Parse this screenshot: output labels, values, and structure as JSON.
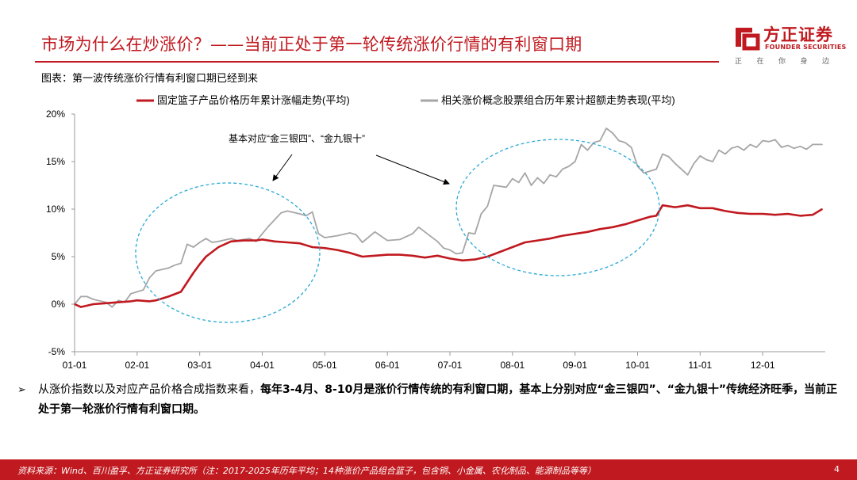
{
  "header": {
    "title": "市场为什么在炒涨价？——当前正处于第一轮传统涨价行情的有利窗口期",
    "subtitle": "图表：第一波传统涨价行情有利窗口期已经到来"
  },
  "logo": {
    "name": "方正证券",
    "english": "FOUNDER SECURITIES",
    "slogan": "正在你身边"
  },
  "colors": {
    "brand": "#c0191f",
    "series_red": "#c0191f",
    "series_gray": "#a6a6a6",
    "circle": "#2aa9d6"
  },
  "chart_data": {
    "type": "line",
    "title": "",
    "xlabel": "",
    "ylabel": "",
    "ylim": [
      -5,
      20
    ],
    "yticks": [
      "20%",
      "15%",
      "10%",
      "5%",
      "0%",
      "-5%"
    ],
    "xlim": [
      1,
      13
    ],
    "xticks": [
      "01-01",
      "02-01",
      "03-01",
      "04-01",
      "05-01",
      "06-01",
      "07-01",
      "08-01",
      "09-01",
      "10-01",
      "11-01",
      "12-01"
    ],
    "grid": false,
    "legend_position": "top",
    "series": [
      {
        "name": "固定篮子产品价格历年累计涨幅走势(平均)",
        "color": "#c0191f",
        "x": [
          1.0,
          1.1,
          1.3,
          1.5,
          1.7,
          1.9,
          2.0,
          2.2,
          2.3,
          2.5,
          2.7,
          2.8,
          2.9,
          3.0,
          3.1,
          3.3,
          3.5,
          3.7,
          3.9,
          4.0,
          4.2,
          4.4,
          4.6,
          4.8,
          5.0,
          5.2,
          5.4,
          5.6,
          5.8,
          6.0,
          6.2,
          6.4,
          6.6,
          6.8,
          7.0,
          7.2,
          7.4,
          7.6,
          7.8,
          8.0,
          8.2,
          8.4,
          8.6,
          8.8,
          9.0,
          9.2,
          9.4,
          9.6,
          9.8,
          10.0,
          10.2,
          10.3,
          10.4,
          10.6,
          10.8,
          11.0,
          11.2,
          11.4,
          11.6,
          11.8,
          12.0,
          12.2,
          12.4,
          12.6,
          12.8,
          12.95
        ],
        "values": [
          0.0,
          -0.3,
          0.0,
          0.1,
          0.2,
          0.3,
          0.4,
          0.3,
          0.4,
          0.8,
          1.3,
          2.3,
          3.3,
          4.2,
          5.0,
          6.0,
          6.6,
          6.7,
          6.7,
          6.8,
          6.6,
          6.5,
          6.4,
          6.0,
          5.9,
          5.7,
          5.4,
          5.0,
          5.1,
          5.2,
          5.2,
          5.1,
          4.9,
          5.1,
          4.8,
          4.6,
          4.7,
          5.0,
          5.5,
          6.0,
          6.5,
          6.7,
          6.9,
          7.2,
          7.4,
          7.6,
          7.9,
          8.1,
          8.4,
          8.8,
          9.2,
          9.3,
          10.4,
          10.2,
          10.4,
          10.1,
          10.1,
          9.8,
          9.6,
          9.5,
          9.5,
          9.4,
          9.5,
          9.3,
          9.4,
          10.0
        ]
      },
      {
        "name": "相关涨价概念股票组合历年累计超额走势表现(平均)",
        "color": "#a6a6a6",
        "x": [
          1.0,
          1.1,
          1.2,
          1.3,
          1.5,
          1.6,
          1.7,
          1.8,
          1.9,
          2.0,
          2.1,
          2.2,
          2.3,
          2.5,
          2.6,
          2.7,
          2.8,
          2.9,
          3.0,
          3.1,
          3.2,
          3.3,
          3.5,
          3.6,
          3.7,
          3.8,
          3.9,
          4.0,
          4.1,
          4.2,
          4.3,
          4.4,
          4.6,
          4.7,
          4.8,
          4.9,
          5.0,
          5.2,
          5.4,
          5.5,
          5.6,
          5.8,
          6.0,
          6.2,
          6.4,
          6.5,
          6.6,
          6.8,
          6.9,
          7.0,
          7.1,
          7.2,
          7.3,
          7.4,
          7.5,
          7.6,
          7.7,
          7.8,
          7.9,
          8.0,
          8.1,
          8.2,
          8.3,
          8.4,
          8.5,
          8.6,
          8.7,
          8.8,
          8.9,
          9.0,
          9.1,
          9.2,
          9.3,
          9.4,
          9.5,
          9.6,
          9.7,
          9.8,
          9.9,
          10.0,
          10.1,
          10.2,
          10.3,
          10.4,
          10.5,
          10.6,
          10.7,
          10.8,
          10.9,
          11.0,
          11.1,
          11.2,
          11.3,
          11.4,
          11.5,
          11.6,
          11.7,
          11.8,
          11.9,
          12.0,
          12.1,
          12.2,
          12.3,
          12.4,
          12.5,
          12.6,
          12.7,
          12.8,
          12.95
        ],
        "values": [
          0.0,
          0.8,
          0.8,
          0.5,
          0.2,
          -0.3,
          0.4,
          0.2,
          1.1,
          1.3,
          1.5,
          2.8,
          3.5,
          3.8,
          4.1,
          4.3,
          6.3,
          6.0,
          6.5,
          6.9,
          6.5,
          6.6,
          6.9,
          6.7,
          6.8,
          6.9,
          6.6,
          7.4,
          8.2,
          8.9,
          9.6,
          9.8,
          9.5,
          9.3,
          9.7,
          7.4,
          7.0,
          7.2,
          7.5,
          7.3,
          6.5,
          7.6,
          6.7,
          6.8,
          7.4,
          8.1,
          7.6,
          6.6,
          5.9,
          5.7,
          5.3,
          5.4,
          7.5,
          7.4,
          9.5,
          10.3,
          12.5,
          12.4,
          12.3,
          13.2,
          12.8,
          13.8,
          12.5,
          13.3,
          12.7,
          13.6,
          13.4,
          14.2,
          14.5,
          15.0,
          16.8,
          16.2,
          17.0,
          17.2,
          18.5,
          18.0,
          17.2,
          17.0,
          16.5,
          14.5,
          13.8,
          14.0,
          14.2,
          15.8,
          15.5,
          14.8,
          14.2,
          13.6,
          14.8,
          15.6,
          15.2,
          15.0,
          16.2,
          15.8,
          16.4,
          16.6,
          16.2,
          16.8,
          16.5,
          17.2,
          17.1,
          17.3,
          16.5,
          16.7,
          16.4,
          16.6,
          16.3,
          16.8,
          16.8
        ]
      }
    ],
    "annotations": [
      "基本对应“金三银四”、“金九银十”"
    ]
  },
  "bullet": {
    "marker": "➢",
    "lead": "从涨价指数以及对应产品价格合成指数来看，",
    "bold": "每年3-4月、8-10月是涨价行情传统的有利窗口期，基本上分别对应“金三银四”、“金九银十”传统经济旺季，当前正处于第一轮涨价行情有利窗口期。"
  },
  "footer": {
    "source": "资料来源：Wind、百川盈孚、方正证券研究所（注：2017-2025年历年平均；14种涨价产品组合篮子，包含铜、小金属、农化制品、能源制品等等）",
    "page": "4"
  }
}
